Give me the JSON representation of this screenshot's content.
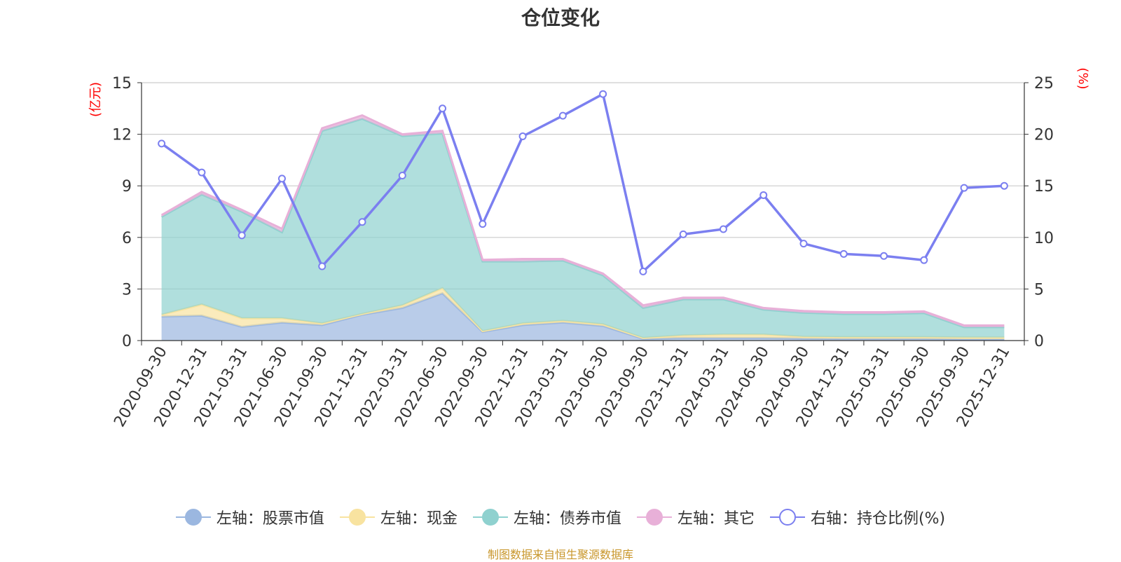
{
  "title": "仓位变化",
  "source_note": "制图数据来自恒生聚源数据库",
  "colors": {
    "stock": "#9bb7e0",
    "cash": "#f8e3a0",
    "bond": "#8fd1cf",
    "other": "#e8b0d8",
    "ratio": "#7b7ff0",
    "axis_unit": "#ff0000",
    "grid": "#cccccc",
    "text": "#333333"
  },
  "chart_data": {
    "type": "area",
    "title": "仓位变化",
    "y_left_label": "(亿元)",
    "y_right_label": "(%)",
    "y_left_lim": [
      0,
      15
    ],
    "y_left_ticks": [
      0,
      3,
      6,
      9,
      12,
      15
    ],
    "y_right_lim": [
      0,
      25
    ],
    "y_right_ticks": [
      0,
      5,
      10,
      15,
      20,
      25
    ],
    "grid": true,
    "legend_position": "bottom",
    "categories": [
      "2020-09-30",
      "2020-12-31",
      "2021-03-31",
      "2021-06-30",
      "2021-09-30",
      "2021-12-31",
      "2022-03-31",
      "2022-06-30",
      "2022-09-30",
      "2022-12-31",
      "2023-03-31",
      "2023-06-30",
      "2023-09-30",
      "2023-12-31",
      "2024-03-31",
      "2024-06-30",
      "2024-09-30",
      "2024-12-31",
      "2025-03-31",
      "2025-06-30",
      "2025-09-30",
      "2025-12-31"
    ],
    "series": [
      {
        "name": "左轴：股票市值",
        "key": "stock",
        "axis": "left",
        "type": "stacked-area",
        "values": [
          1.4,
          1.45,
          0.8,
          1.05,
          0.9,
          1.5,
          1.9,
          2.75,
          0.5,
          0.9,
          1.05,
          0.85,
          0.1,
          0.15,
          0.15,
          0.15,
          0.12,
          0.1,
          0.1,
          0.1,
          0.08,
          0.08
        ]
      },
      {
        "name": "左轴：现金",
        "key": "cash",
        "axis": "left",
        "type": "stacked-area",
        "values": [
          0.1,
          0.65,
          0.5,
          0.25,
          0.1,
          0.05,
          0.15,
          0.3,
          0.05,
          0.1,
          0.1,
          0.1,
          0.05,
          0.15,
          0.2,
          0.2,
          0.1,
          0.1,
          0.1,
          0.1,
          0.1,
          0.1
        ]
      },
      {
        "name": "左轴：债券市值",
        "key": "bond",
        "axis": "left",
        "type": "stacked-area",
        "values": [
          5.7,
          6.4,
          6.2,
          5.0,
          11.2,
          11.35,
          9.85,
          9.0,
          4.05,
          3.6,
          3.5,
          2.85,
          1.75,
          2.1,
          2.05,
          1.45,
          1.4,
          1.35,
          1.35,
          1.4,
          0.6,
          0.6
        ]
      },
      {
        "name": "左轴：其它",
        "key": "other",
        "axis": "left",
        "type": "stacked-area",
        "values": [
          0.1,
          0.15,
          0.1,
          0.2,
          0.15,
          0.2,
          0.1,
          0.15,
          0.1,
          0.15,
          0.1,
          0.1,
          0.15,
          0.1,
          0.1,
          0.1,
          0.1,
          0.1,
          0.1,
          0.1,
          0.1,
          0.1
        ]
      },
      {
        "name": "右轴：持仓比例(%)",
        "key": "ratio",
        "axis": "right",
        "type": "line",
        "values": [
          19.1,
          16.3,
          10.2,
          15.7,
          7.2,
          11.5,
          16.0,
          22.5,
          11.3,
          19.8,
          21.8,
          23.9,
          6.7,
          10.3,
          10.8,
          14.1,
          9.4,
          8.4,
          8.2,
          7.8,
          14.8,
          15.0
        ]
      }
    ]
  }
}
